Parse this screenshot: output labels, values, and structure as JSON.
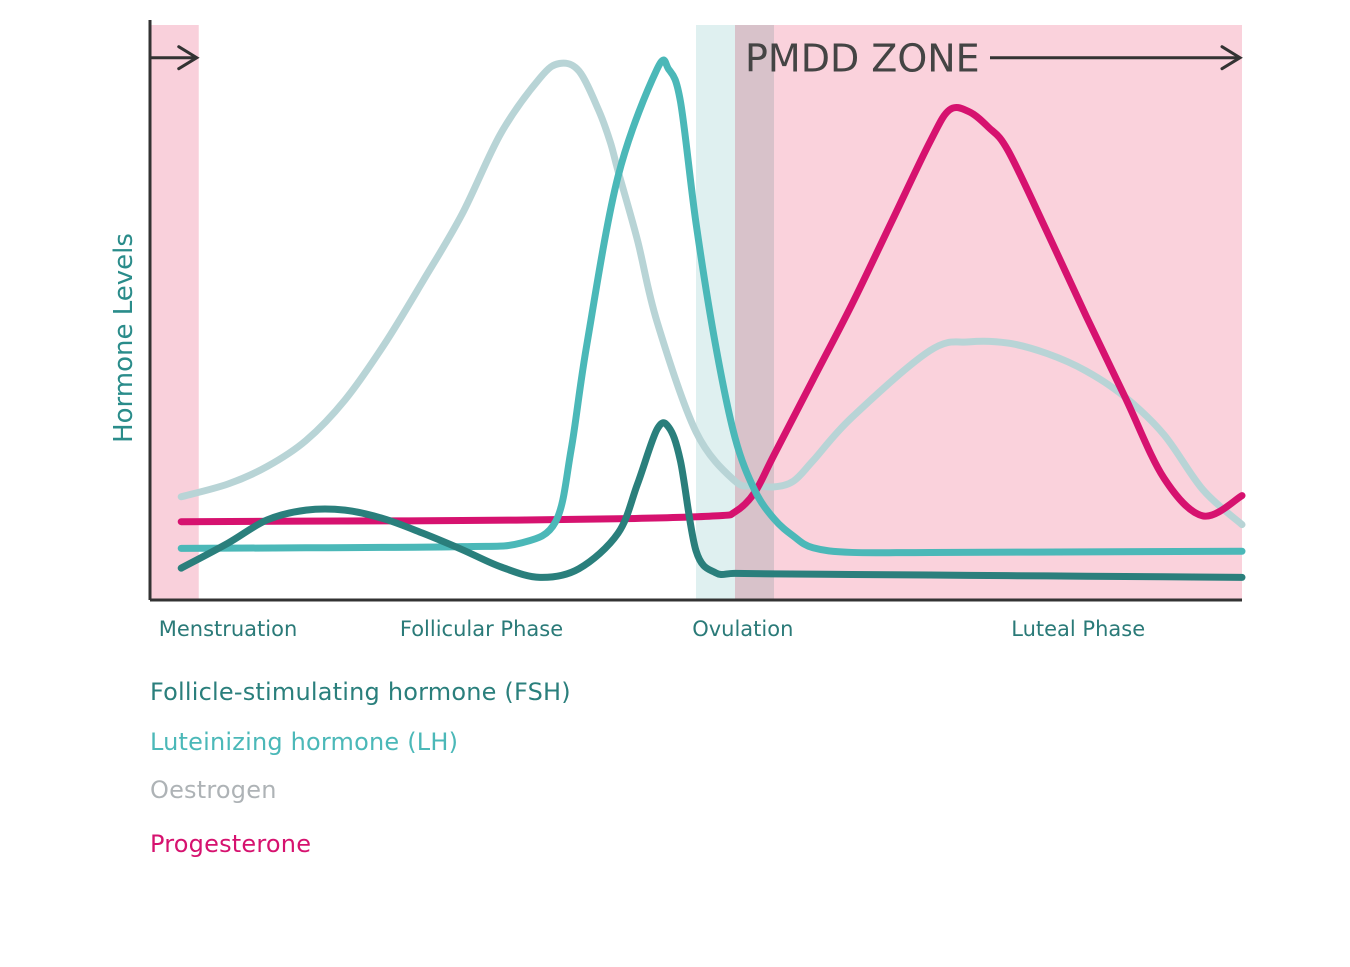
{
  "chart_data": {
    "type": "line",
    "title": "",
    "xlabel": "",
    "ylabel": "Hormone Levels",
    "grid": false,
    "legend_placement": "bottom-left",
    "x_range": [
      0,
      28
    ],
    "y_range": [
      0,
      100
    ],
    "phases": [
      {
        "label": "Menstruation",
        "x_center": 2
      },
      {
        "label": "Follicular Phase",
        "x_center": 8.5
      },
      {
        "label": "Ovulation",
        "x_center": 15.2
      },
      {
        "label": "Luteal Phase",
        "x_center": 23.8
      }
    ],
    "shaded_regions": [
      {
        "name": "menstruation",
        "x_start": 0,
        "x_end": 1.25,
        "color": "#f9d0db"
      },
      {
        "name": "ovulation",
        "x_start": 14,
        "x_end": 15,
        "color": "#dff0f0"
      },
      {
        "name": "ovulation-overlap",
        "x_start": 15,
        "x_end": 16,
        "color": "#d8c2ca"
      },
      {
        "name": "pmdd",
        "x_start": 16,
        "x_end": 28,
        "color": "#fad2dc"
      }
    ],
    "annotations": [
      {
        "text": "PMDD ZONE",
        "x_start": 15,
        "x_end": 28,
        "y": 93.5,
        "arrow": "right"
      },
      {
        "text": "",
        "x_start": 0,
        "x_end": 1.25,
        "y": 93.5,
        "arrow": "right"
      }
    ],
    "series": [
      {
        "name": "Follicle-stimulating hormone (FSH)",
        "color": "#2a7f7c",
        "x": [
          0.8,
          2,
          3,
          4,
          5,
          6,
          7,
          8,
          9,
          10,
          11,
          12,
          12.5,
          13,
          13.3,
          13.6,
          14,
          14.5,
          15,
          16,
          18,
          20,
          22,
          24,
          26,
          28
        ],
        "y": [
          5.5,
          9.8,
          13.8,
          15.5,
          15.5,
          14,
          11.5,
          8.7,
          5.7,
          3.9,
          5.4,
          11.5,
          20,
          29.4,
          29.8,
          24,
          8.5,
          4.7,
          4.6,
          4.5,
          4.4,
          4.3,
          4.2,
          4.1,
          4,
          3.9
        ]
      },
      {
        "name": "Luteinizing hormone (LH)",
        "color": "#4bb8b8",
        "x": [
          0.8,
          4,
          8,
          9.5,
          10.4,
          10.8,
          11.2,
          12,
          13,
          13.3,
          13.6,
          14,
          14.5,
          15,
          15.5,
          16,
          16.5,
          17,
          18,
          20,
          24,
          28
        ],
        "y": [
          8.9,
          9,
          9.2,
          9.8,
          13.5,
          26,
          44,
          73,
          91.5,
          91.5,
          86,
          65,
          44,
          28,
          19,
          14,
          11,
          9,
          8.2,
          8.2,
          8.3,
          8.4
        ]
      },
      {
        "name": "Oestrogen",
        "color": "#b8d4d6",
        "x": [
          0.8,
          2,
          3,
          4,
          5,
          6,
          7,
          8,
          9,
          10,
          10.5,
          11,
          11.5,
          11.8,
          12,
          12.5,
          13,
          14,
          15,
          15.5,
          16,
          16.5,
          17,
          18,
          20,
          21,
          22,
          23,
          24,
          25,
          26,
          27,
          28
        ],
        "y": [
          17.8,
          20,
          23,
          27.5,
          34.5,
          44,
          55,
          66.5,
          80.5,
          90,
          92.5,
          91.2,
          84.5,
          79,
          74,
          62,
          48,
          29,
          20.5,
          19.8,
          19.5,
          20.5,
          24,
          31.5,
          43,
          44.5,
          44.3,
          42.5,
          39.5,
          35,
          28.5,
          19,
          13
        ]
      },
      {
        "name": "Progesterone",
        "color": "#d6126f",
        "x": [
          0.8,
          4,
          8,
          12,
          14.5,
          15,
          15.5,
          16,
          17,
          18,
          19,
          20,
          20.5,
          21,
          21.5,
          22,
          23,
          24,
          25,
          26,
          27,
          28
        ],
        "y": [
          13.5,
          13.6,
          13.7,
          14,
          14.5,
          15.2,
          18.5,
          25,
          38,
          51,
          65,
          79,
          84.5,
          84.2,
          81.5,
          77.5,
          63.5,
          49,
          35,
          21,
          14.5,
          18
        ]
      }
    ]
  }
}
